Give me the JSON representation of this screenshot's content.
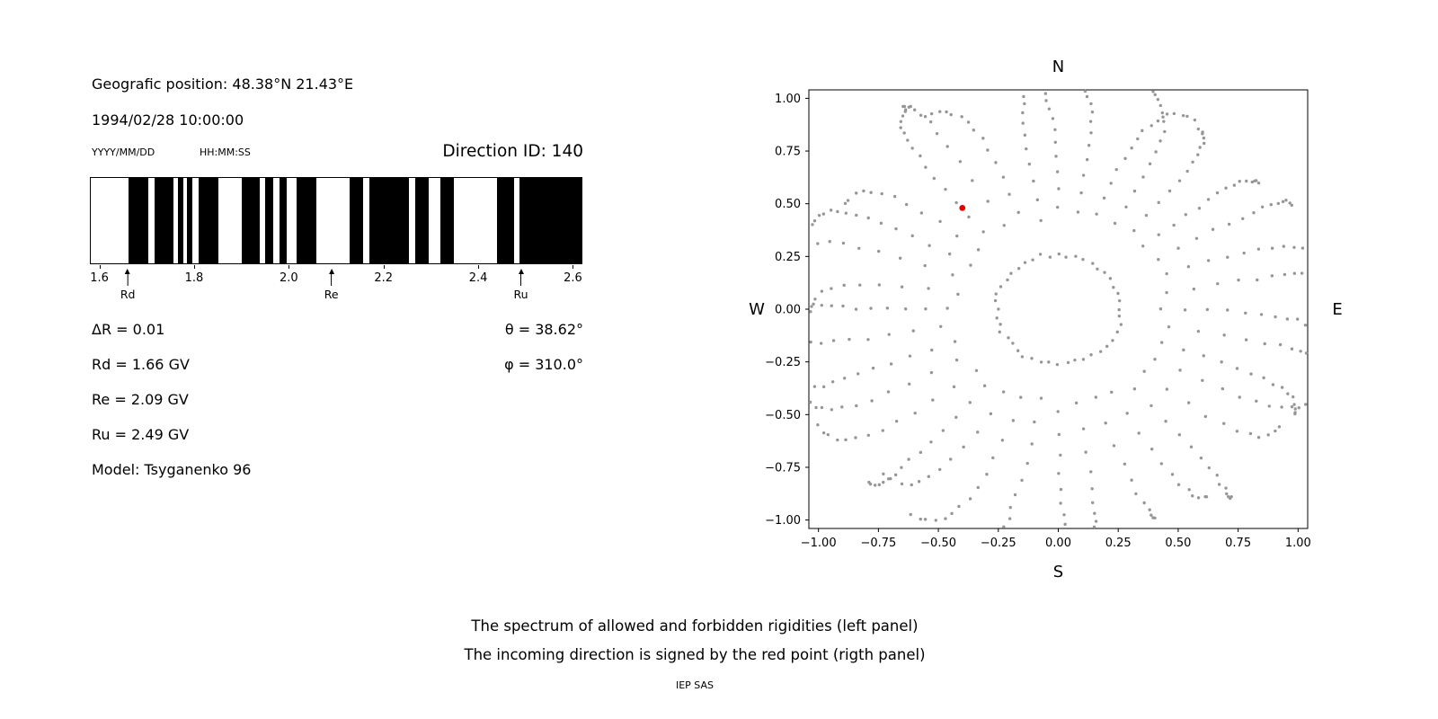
{
  "colors": {
    "background": "#ffffff",
    "band_black": "#000000",
    "axis": "#000000",
    "dot_gray": "#969696",
    "dot_red": "#e00000"
  },
  "header": {
    "geographic_position": "Geografic position: 48.38°N 21.43°E",
    "datetime": "1994/02/28 10:00:00",
    "date_format_hint": "YYYY/MM/DD",
    "time_format_hint": "HH:MM:SS",
    "direction_id": "Direction ID: 140"
  },
  "stats": {
    "delta_r": "ΔR = 0.01",
    "rd": "Rd = 1.66 GV",
    "re": "Re = 2.09 GV",
    "ru": "Ru = 2.49 GV",
    "model": "Model: Tsyganenko 96",
    "theta": "θ = 38.62°",
    "phi": "φ = 310.0°"
  },
  "captions": {
    "line1": "The spectrum of allowed and forbidden rigidities (left panel)",
    "line2": "The incoming direction is signed by the red point (rigth panel)",
    "credit": "IEP SAS"
  },
  "chart_data": [
    {
      "type": "bar",
      "panel": "left",
      "xlim": [
        1.6,
        2.6
      ],
      "xticks": [
        "1.6",
        "1.8",
        "2.0",
        "2.2",
        "2.4",
        "2.6"
      ],
      "xtick_values": [
        1.6,
        1.8,
        2.0,
        2.2,
        2.4,
        2.6
      ],
      "forbidden_bands_gv": [
        [
          1.66,
          1.702
        ],
        [
          1.716,
          1.755
        ],
        [
          1.764,
          1.776
        ],
        [
          1.783,
          1.796
        ],
        [
          1.808,
          1.85
        ],
        [
          1.9,
          1.938
        ],
        [
          1.95,
          1.966
        ],
        [
          1.98,
          1.996
        ],
        [
          2.017,
          2.058
        ],
        [
          2.128,
          2.158
        ],
        [
          2.17,
          2.254
        ],
        [
          2.267,
          2.297
        ],
        [
          2.32,
          2.35
        ],
        [
          2.44,
          2.478
        ],
        [
          2.488,
          2.62
        ]
      ],
      "annotations": [
        {
          "label": "Rd",
          "x": 1.66
        },
        {
          "label": "Re",
          "x": 2.09
        },
        {
          "label": "Ru",
          "x": 2.49
        }
      ],
      "values": {
        "delta_r_gv": 0.01,
        "rd_gv": 1.66,
        "re_gv": 2.09,
        "ru_gv": 2.49,
        "model": "Tsyganenko 96"
      }
    },
    {
      "type": "scatter",
      "panel": "right",
      "xlim": [
        -1.0,
        1.0
      ],
      "ylim": [
        -1.0,
        1.0
      ],
      "xticks": [
        "−1.00",
        "−0.75",
        "−0.50",
        "−0.25",
        "0.00",
        "0.25",
        "0.50",
        "0.75",
        "1.00"
      ],
      "xtick_values": [
        -1.0,
        -0.75,
        -0.5,
        -0.25,
        0.0,
        0.25,
        0.5,
        0.75,
        1.0
      ],
      "yticks": [
        "1.00",
        "0.75",
        "0.50",
        "0.25",
        "0.00",
        "−0.25",
        "−0.50",
        "−0.75",
        "−1.00"
      ],
      "ytick_values": [
        1.0,
        0.75,
        0.5,
        0.25,
        0.0,
        -0.25,
        -0.5,
        -0.75,
        -1.0
      ],
      "compass_labels": {
        "top": "N",
        "right": "E",
        "bottom": "S",
        "left": "W"
      },
      "red_point": {
        "x": -0.4,
        "y": 0.48,
        "theta_deg": 38.62,
        "phi_deg": 310.0
      },
      "gray_dots_pattern": {
        "description": "grey dots: inner ring plus 36 radial spokes every 10 degrees, dot spacing densifying outward toward r ~ 1",
        "inner_ring": {
          "radius": 0.26,
          "count": 44
        },
        "spokes": {
          "count": 36,
          "start_deg": 0,
          "step_deg": 10,
          "r_min": 0.42,
          "r_max": 1.02,
          "dots_min": 11,
          "dots_max": 16
        }
      }
    }
  ]
}
